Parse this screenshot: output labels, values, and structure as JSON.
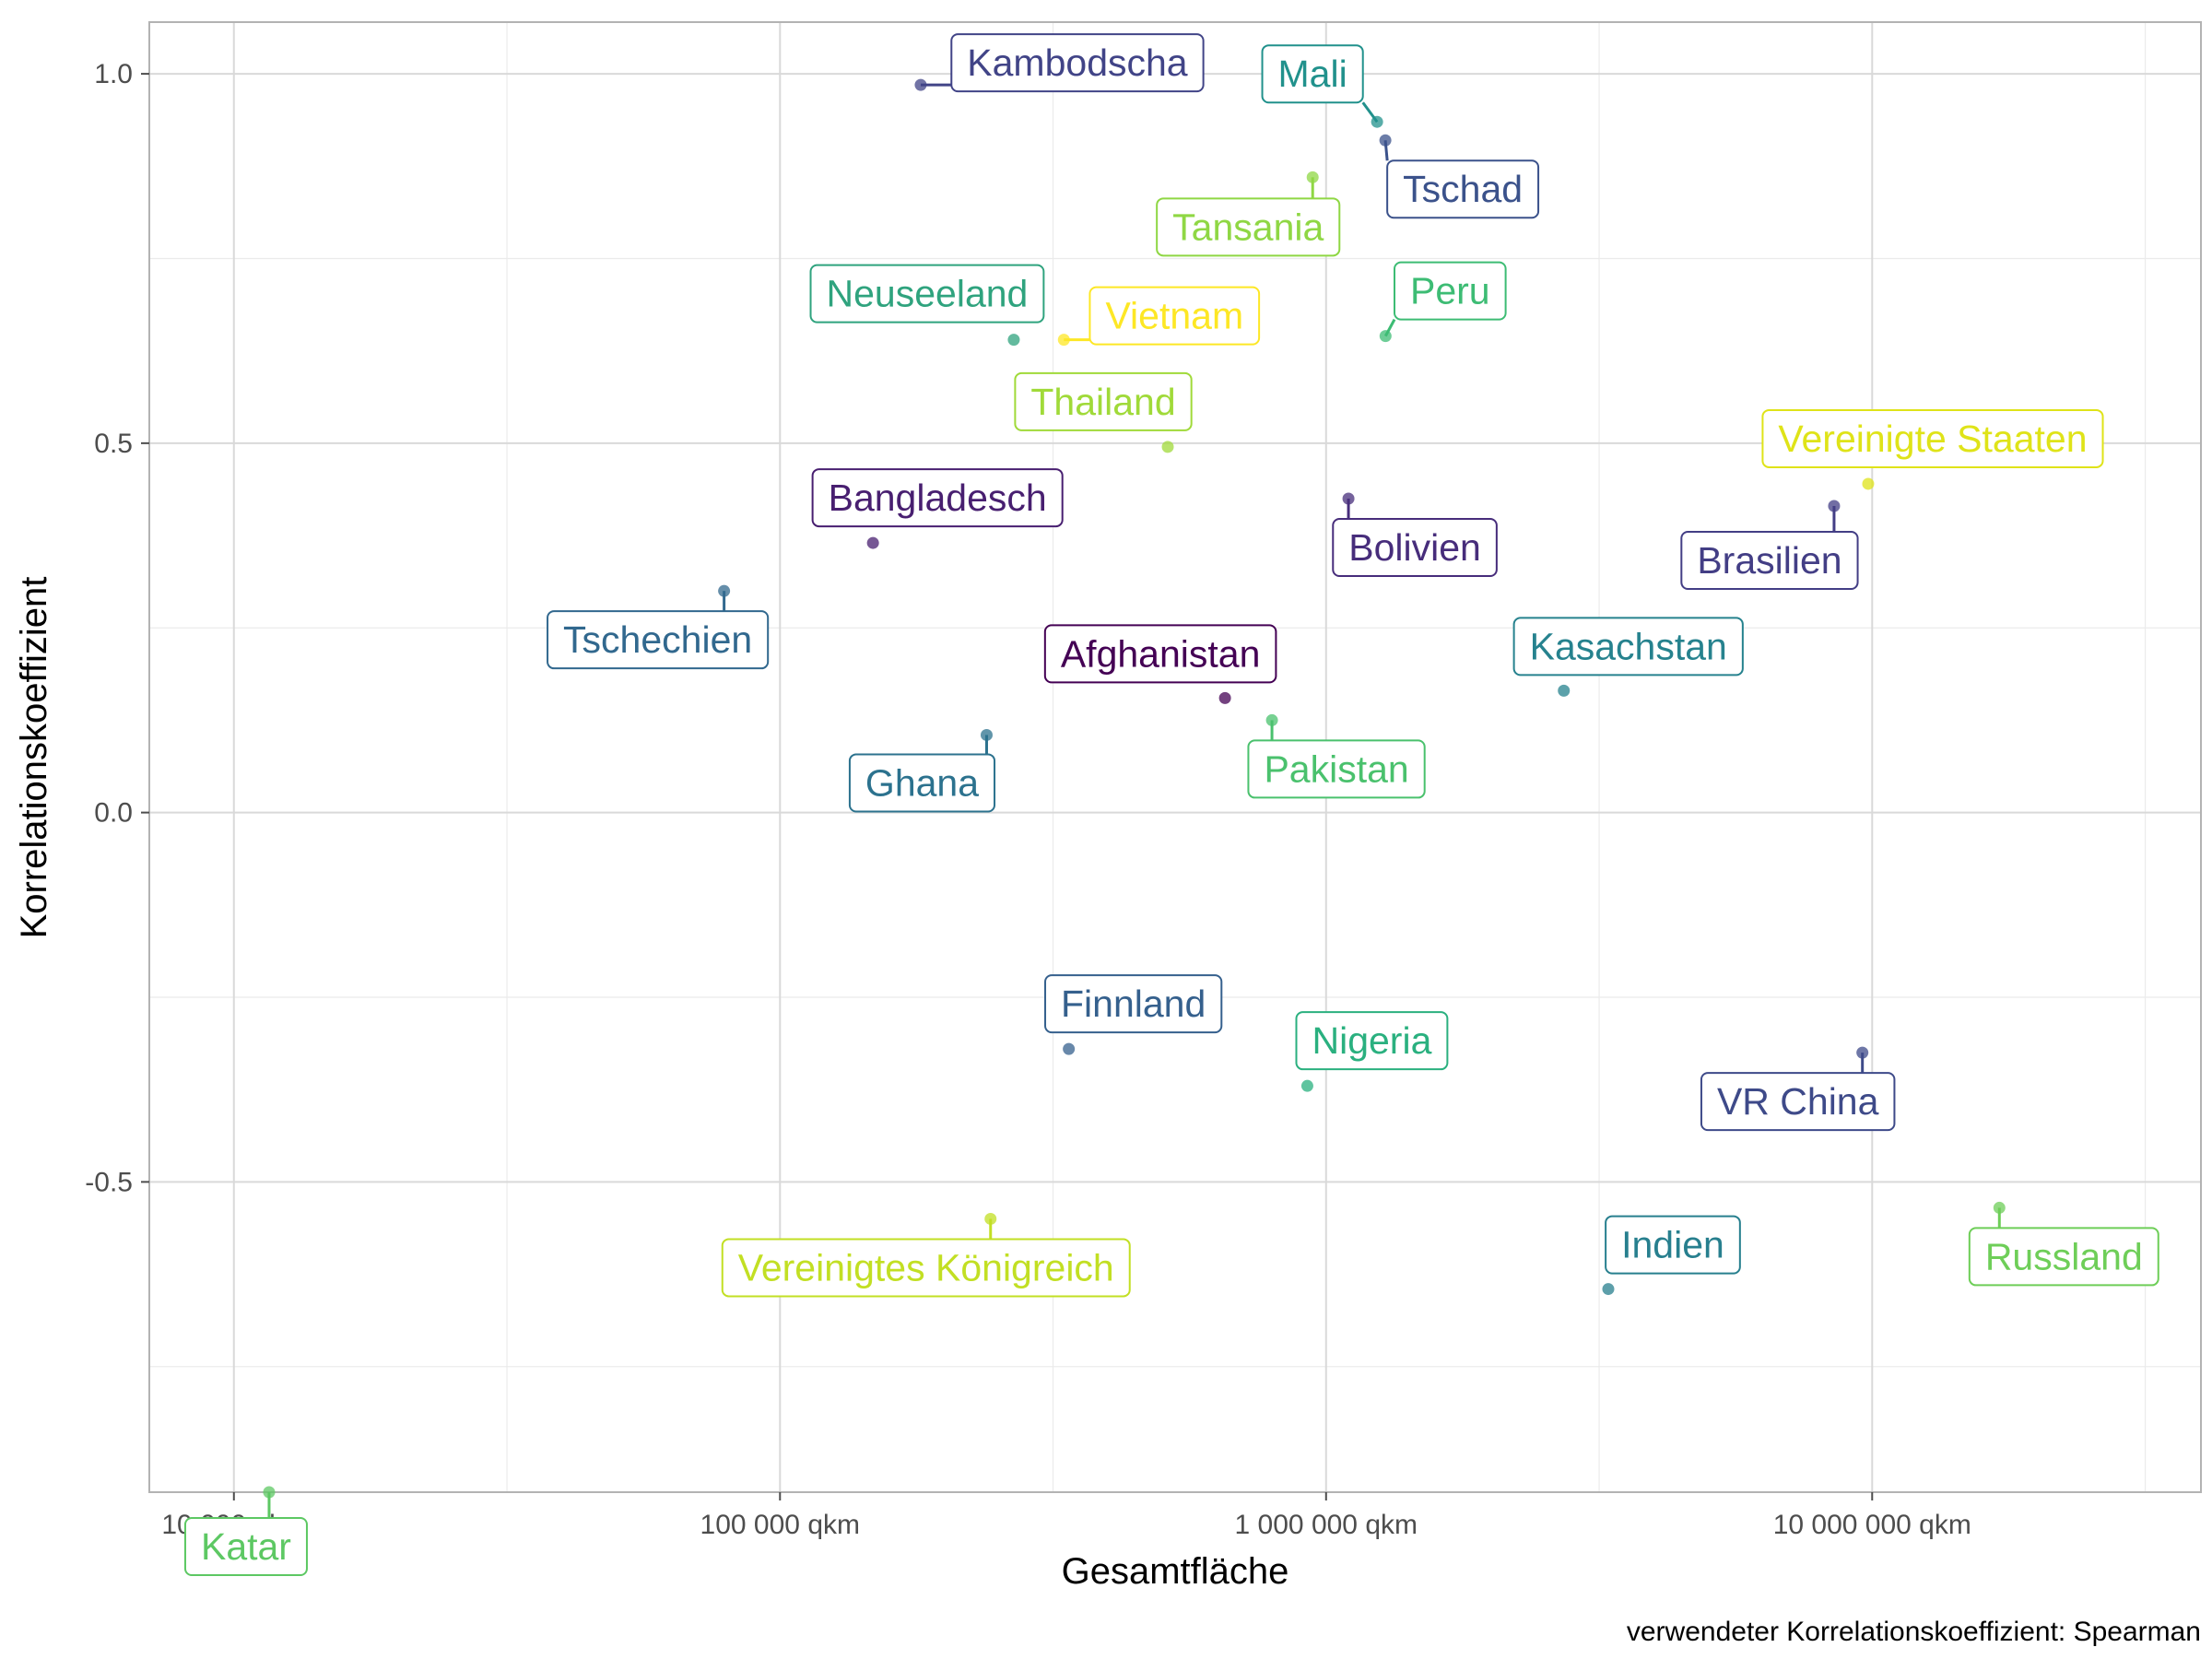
{
  "chart_data": {
    "type": "scatter",
    "xlabel": "Gesamtfläche",
    "ylabel": "Korrelationskoeffizient",
    "caption": "verwendeter Korrelationskoeffizient: Spearman",
    "x_scale": "log10",
    "xlim": [
      7000,
      40000000
    ],
    "ylim": [
      -0.92,
      1.07
    ],
    "x_ticks": [
      {
        "value": 10000,
        "label": "10 000 qkm"
      },
      {
        "value": 100000,
        "label": "100 000 qkm"
      },
      {
        "value": 1000000,
        "label": "1 000 000 qkm"
      },
      {
        "value": 10000000,
        "label": "10 000 000 qkm"
      }
    ],
    "y_ticks": [
      {
        "value": 1.0,
        "label": "1.0"
      },
      {
        "value": 0.5,
        "label": "0.5"
      },
      {
        "value": 0.0,
        "label": "0.0"
      },
      {
        "value": -0.5,
        "label": "-0.5"
      }
    ],
    "grid": true,
    "legend": "none",
    "points": [
      {
        "name": "Kambodscha",
        "x": 181000,
        "y": 0.985,
        "color": "#414487"
      },
      {
        "name": "Mali",
        "x": 1240000,
        "y": 0.935,
        "color": "#21918C"
      },
      {
        "name": "Tschad",
        "x": 1284000,
        "y": 0.91,
        "color": "#3B528B"
      },
      {
        "name": "Tansania",
        "x": 945000,
        "y": 0.86,
        "color": "#8FD744"
      },
      {
        "name": "Neuseeland",
        "x": 268000,
        "y": 0.64,
        "color": "#2FA37E"
      },
      {
        "name": "Vietnam",
        "x": 331000,
        "y": 0.64,
        "color": "#FDE725"
      },
      {
        "name": "Peru",
        "x": 1285000,
        "y": 0.645,
        "color": "#3DBC74"
      },
      {
        "name": "Thailand",
        "x": 513000,
        "y": 0.495,
        "color": "#A0DA39"
      },
      {
        "name": "Vereinigte Staaten",
        "x": 9834000,
        "y": 0.445,
        "color": "#DFE318"
      },
      {
        "name": "Bangladesch",
        "x": 148000,
        "y": 0.365,
        "color": "#481F70"
      },
      {
        "name": "Bolivien",
        "x": 1099000,
        "y": 0.425,
        "color": "#472D7B"
      },
      {
        "name": "Brasilien",
        "x": 8516000,
        "y": 0.415,
        "color": "#433E85"
      },
      {
        "name": "Tschechien",
        "x": 79000,
        "y": 0.3,
        "color": "#31688E"
      },
      {
        "name": "Afghanistan",
        "x": 653000,
        "y": 0.155,
        "color": "#440154"
      },
      {
        "name": "Pakistan",
        "x": 796000,
        "y": 0.125,
        "color": "#4AC16D"
      },
      {
        "name": "Kasachstan",
        "x": 2725000,
        "y": 0.165,
        "color": "#26828E"
      },
      {
        "name": "Ghana",
        "x": 239000,
        "y": 0.105,
        "color": "#2C728E"
      },
      {
        "name": "Finnland",
        "x": 338000,
        "y": -0.32,
        "color": "#35608D"
      },
      {
        "name": "Nigeria",
        "x": 924000,
        "y": -0.37,
        "color": "#2AB07F"
      },
      {
        "name": "VR China",
        "x": 9597000,
        "y": -0.325,
        "color": "#3E4A89"
      },
      {
        "name": "Vereinigtes Königreich",
        "x": 243000,
        "y": -0.55,
        "color": "#C2DF23"
      },
      {
        "name": "Indien",
        "x": 3287000,
        "y": -0.645,
        "color": "#277F8E"
      },
      {
        "name": "Russland",
        "x": 17098000,
        "y": -0.535,
        "color": "#6ECE58"
      },
      {
        "name": "Katar",
        "x": 11600,
        "y": -0.92,
        "color": "#5DC863"
      }
    ]
  }
}
